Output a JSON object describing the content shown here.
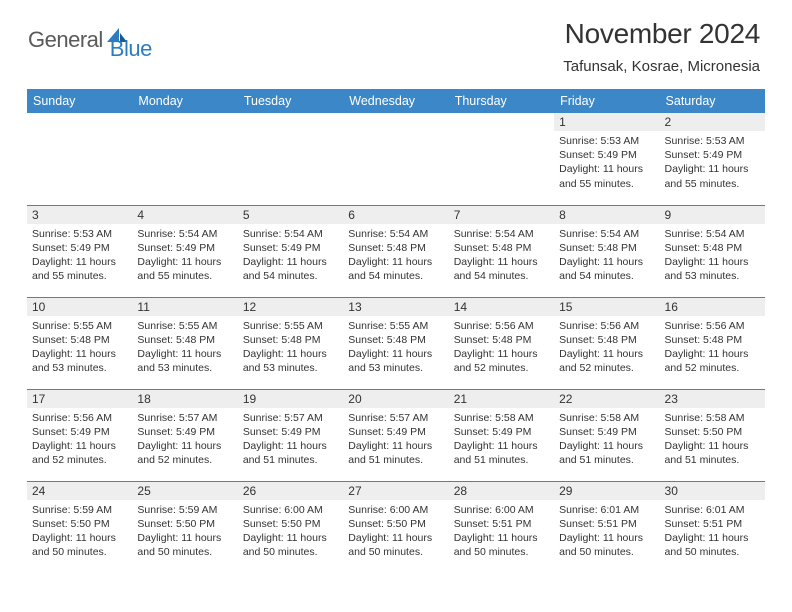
{
  "brand": {
    "part1": "General",
    "part2": "Blue"
  },
  "title": "November 2024",
  "location": "Tafunsak, Kosrae, Micronesia",
  "colors": {
    "header_bg": "#3b87c8",
    "header_text": "#ffffff",
    "daynum_bg": "#eeeeee",
    "border": "#3b87c8",
    "text": "#333333",
    "logo_gray": "#5a5a5a",
    "logo_blue": "#2d7cc0"
  },
  "dayHeaders": [
    "Sunday",
    "Monday",
    "Tuesday",
    "Wednesday",
    "Thursday",
    "Friday",
    "Saturday"
  ],
  "weeks": [
    [
      null,
      null,
      null,
      null,
      null,
      {
        "n": "1",
        "sr": "5:53 AM",
        "ss": "5:49 PM",
        "dl": "11 hours and 55 minutes."
      },
      {
        "n": "2",
        "sr": "5:53 AM",
        "ss": "5:49 PM",
        "dl": "11 hours and 55 minutes."
      }
    ],
    [
      {
        "n": "3",
        "sr": "5:53 AM",
        "ss": "5:49 PM",
        "dl": "11 hours and 55 minutes."
      },
      {
        "n": "4",
        "sr": "5:54 AM",
        "ss": "5:49 PM",
        "dl": "11 hours and 55 minutes."
      },
      {
        "n": "5",
        "sr": "5:54 AM",
        "ss": "5:49 PM",
        "dl": "11 hours and 54 minutes."
      },
      {
        "n": "6",
        "sr": "5:54 AM",
        "ss": "5:48 PM",
        "dl": "11 hours and 54 minutes."
      },
      {
        "n": "7",
        "sr": "5:54 AM",
        "ss": "5:48 PM",
        "dl": "11 hours and 54 minutes."
      },
      {
        "n": "8",
        "sr": "5:54 AM",
        "ss": "5:48 PM",
        "dl": "11 hours and 54 minutes."
      },
      {
        "n": "9",
        "sr": "5:54 AM",
        "ss": "5:48 PM",
        "dl": "11 hours and 53 minutes."
      }
    ],
    [
      {
        "n": "10",
        "sr": "5:55 AM",
        "ss": "5:48 PM",
        "dl": "11 hours and 53 minutes."
      },
      {
        "n": "11",
        "sr": "5:55 AM",
        "ss": "5:48 PM",
        "dl": "11 hours and 53 minutes."
      },
      {
        "n": "12",
        "sr": "5:55 AM",
        "ss": "5:48 PM",
        "dl": "11 hours and 53 minutes."
      },
      {
        "n": "13",
        "sr": "5:55 AM",
        "ss": "5:48 PM",
        "dl": "11 hours and 53 minutes."
      },
      {
        "n": "14",
        "sr": "5:56 AM",
        "ss": "5:48 PM",
        "dl": "11 hours and 52 minutes."
      },
      {
        "n": "15",
        "sr": "5:56 AM",
        "ss": "5:48 PM",
        "dl": "11 hours and 52 minutes."
      },
      {
        "n": "16",
        "sr": "5:56 AM",
        "ss": "5:48 PM",
        "dl": "11 hours and 52 minutes."
      }
    ],
    [
      {
        "n": "17",
        "sr": "5:56 AM",
        "ss": "5:49 PM",
        "dl": "11 hours and 52 minutes."
      },
      {
        "n": "18",
        "sr": "5:57 AM",
        "ss": "5:49 PM",
        "dl": "11 hours and 52 minutes."
      },
      {
        "n": "19",
        "sr": "5:57 AM",
        "ss": "5:49 PM",
        "dl": "11 hours and 51 minutes."
      },
      {
        "n": "20",
        "sr": "5:57 AM",
        "ss": "5:49 PM",
        "dl": "11 hours and 51 minutes."
      },
      {
        "n": "21",
        "sr": "5:58 AM",
        "ss": "5:49 PM",
        "dl": "11 hours and 51 minutes."
      },
      {
        "n": "22",
        "sr": "5:58 AM",
        "ss": "5:49 PM",
        "dl": "11 hours and 51 minutes."
      },
      {
        "n": "23",
        "sr": "5:58 AM",
        "ss": "5:50 PM",
        "dl": "11 hours and 51 minutes."
      }
    ],
    [
      {
        "n": "24",
        "sr": "5:59 AM",
        "ss": "5:50 PM",
        "dl": "11 hours and 50 minutes."
      },
      {
        "n": "25",
        "sr": "5:59 AM",
        "ss": "5:50 PM",
        "dl": "11 hours and 50 minutes."
      },
      {
        "n": "26",
        "sr": "6:00 AM",
        "ss": "5:50 PM",
        "dl": "11 hours and 50 minutes."
      },
      {
        "n": "27",
        "sr": "6:00 AM",
        "ss": "5:50 PM",
        "dl": "11 hours and 50 minutes."
      },
      {
        "n": "28",
        "sr": "6:00 AM",
        "ss": "5:51 PM",
        "dl": "11 hours and 50 minutes."
      },
      {
        "n": "29",
        "sr": "6:01 AM",
        "ss": "5:51 PM",
        "dl": "11 hours and 50 minutes."
      },
      {
        "n": "30",
        "sr": "6:01 AM",
        "ss": "5:51 PM",
        "dl": "11 hours and 50 minutes."
      }
    ]
  ],
  "labels": {
    "sunrise": "Sunrise: ",
    "sunset": "Sunset: ",
    "daylight": "Daylight: "
  }
}
